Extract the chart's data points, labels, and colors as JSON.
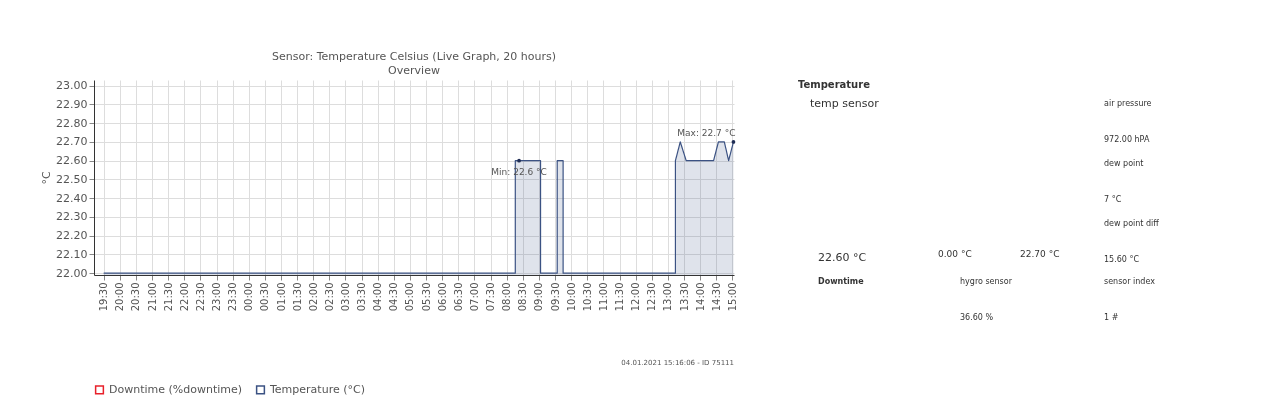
{
  "chart_data": [
    {
      "type": "area",
      "title": "Sensor: Temperature Celsius (Live Graph, 20 hours)",
      "subtitle": "Overview",
      "ylabel": "°C",
      "series": [
        {
          "name": "Downtime (%downtime)",
          "color": "#e8202a"
        },
        {
          "name": "Temperature (°C)",
          "color": "#3b5283",
          "type": "area",
          "x": [
            "2021-01-03T19:30",
            "2021-01-04T08:16",
            "2021-01-04T08:16",
            "2021-01-04T09:03",
            "2021-01-04T09:03",
            "2021-01-04T09:34",
            "2021-01-04T09:34",
            "2021-01-04T09:45",
            "2021-01-04T09:45",
            "2021-01-04T13:14",
            "2021-01-04T13:14",
            "2021-01-04T13:23",
            "2021-01-04T13:34",
            "2021-01-04T14:25",
            "2021-01-04T14:34",
            "2021-01-04T14:45",
            "2021-01-04T14:53",
            "2021-01-04T15:02"
          ],
          "values": [
            22.0,
            22.0,
            22.6,
            22.6,
            22.0,
            22.0,
            22.6,
            22.6,
            22.0,
            22.0,
            22.6,
            22.7,
            22.6,
            22.6,
            22.7,
            22.7,
            22.6,
            22.7
          ]
        }
      ],
      "xlim": [
        "2021-01-03T19:12",
        "2021-01-04T15:03"
      ],
      "xticks": [
        {
          "value": "2021-01-03T19:30",
          "label": "19:30"
        },
        {
          "value": "2021-01-03T20:00",
          "label": "20:00"
        },
        {
          "value": "2021-01-03T20:30",
          "label": "20:30"
        },
        {
          "value": "2021-01-03T21:00",
          "label": "21:00"
        },
        {
          "value": "2021-01-03T21:30",
          "label": "21:30"
        },
        {
          "value": "2021-01-03T22:00",
          "label": "22:00"
        },
        {
          "value": "2021-01-03T22:30",
          "label": "22:30"
        },
        {
          "value": "2021-01-03T23:00",
          "label": "23:00"
        },
        {
          "value": "2021-01-03T23:30",
          "label": "23:30"
        },
        {
          "value": "2021-01-04T00:00",
          "label": "00:00"
        },
        {
          "value": "2021-01-04T00:30",
          "label": "00:30"
        },
        {
          "value": "2021-01-04T01:00",
          "label": "01:00"
        },
        {
          "value": "2021-01-04T01:30",
          "label": "01:30"
        },
        {
          "value": "2021-01-04T02:00",
          "label": "02:00"
        },
        {
          "value": "2021-01-04T02:30",
          "label": "02:30"
        },
        {
          "value": "2021-01-04T03:00",
          "label": "03:00"
        },
        {
          "value": "2021-01-04T03:30",
          "label": "03:30"
        },
        {
          "value": "2021-01-04T04:00",
          "label": "04:00"
        },
        {
          "value": "2021-01-04T04:30",
          "label": "04:30"
        },
        {
          "value": "2021-01-04T05:00",
          "label": "05:00"
        },
        {
          "value": "2021-01-04T05:30",
          "label": "05:30"
        },
        {
          "value": "2021-01-04T06:00",
          "label": "06:00"
        },
        {
          "value": "2021-01-04T06:30",
          "label": "06:30"
        },
        {
          "value": "2021-01-04T07:00",
          "label": "07:00"
        },
        {
          "value": "2021-01-04T07:30",
          "label": "07:30"
        },
        {
          "value": "2021-01-04T08:00",
          "label": "08:00"
        },
        {
          "value": "2021-01-04T08:30",
          "label": "08:30"
        },
        {
          "value": "2021-01-04T09:00",
          "label": "09:00"
        },
        {
          "value": "2021-01-04T09:30",
          "label": "09:30"
        },
        {
          "value": "2021-01-04T10:00",
          "label": "10:00"
        },
        {
          "value": "2021-01-04T10:30",
          "label": "10:30"
        },
        {
          "value": "2021-01-04T11:00",
          "label": "11:00"
        },
        {
          "value": "2021-01-04T11:30",
          "label": "11:30"
        },
        {
          "value": "2021-01-04T12:00",
          "label": "12:00"
        },
        {
          "value": "2021-01-04T12:30",
          "label": "12:30"
        },
        {
          "value": "2021-01-04T13:00",
          "label": "13:00"
        },
        {
          "value": "2021-01-04T13:30",
          "label": "13:30"
        },
        {
          "value": "2021-01-04T14:00",
          "label": "14:00"
        },
        {
          "value": "2021-01-04T14:30",
          "label": "14:30"
        },
        {
          "value": "2021-01-04T15:00",
          "label": "15:00"
        }
      ],
      "ylim": [
        21.99,
        23.03
      ],
      "yticks": [
        {
          "value": 22,
          "label": "22.00"
        },
        {
          "value": 22.1,
          "label": "22.10"
        },
        {
          "value": 22.2,
          "label": "22.20"
        },
        {
          "value": 22.3,
          "label": "22.30"
        },
        {
          "value": 22.4,
          "label": "22.40"
        },
        {
          "value": 22.5,
          "label": "22.50"
        },
        {
          "value": 22.6,
          "label": "22.60"
        },
        {
          "value": 22.7,
          "label": "22.70"
        },
        {
          "value": 22.8,
          "label": "22.80"
        },
        {
          "value": 22.9,
          "label": "22.90"
        },
        {
          "value": 23,
          "label": "23.00"
        }
      ],
      "grid": true,
      "legend": "bottom",
      "annotations": [
        {
          "text": "Min: 22.6 °C",
          "x": "2021-01-04T08:23",
          "y": 22.6
        },
        {
          "text": "Max: 22.7 °C",
          "x": "2021-01-04T15:02",
          "y": 22.7
        },
        "04.01.2021 15:16:06 - ID 75111"
      ]
    },
    {
      "type": "other",
      "annotations": [
        "Temperature",
        "temp sensor",
        "22.60 °C",
        "0.00 °C",
        "22.70 °C",
        "air pressure",
        "972.00 hPA",
        "dew point",
        "7 °C",
        "dew point diff",
        "15.60 °C",
        "Downtime",
        "hygro sensor",
        "36.60 %",
        "sensor index",
        "1 #"
      ]
    }
  ]
}
